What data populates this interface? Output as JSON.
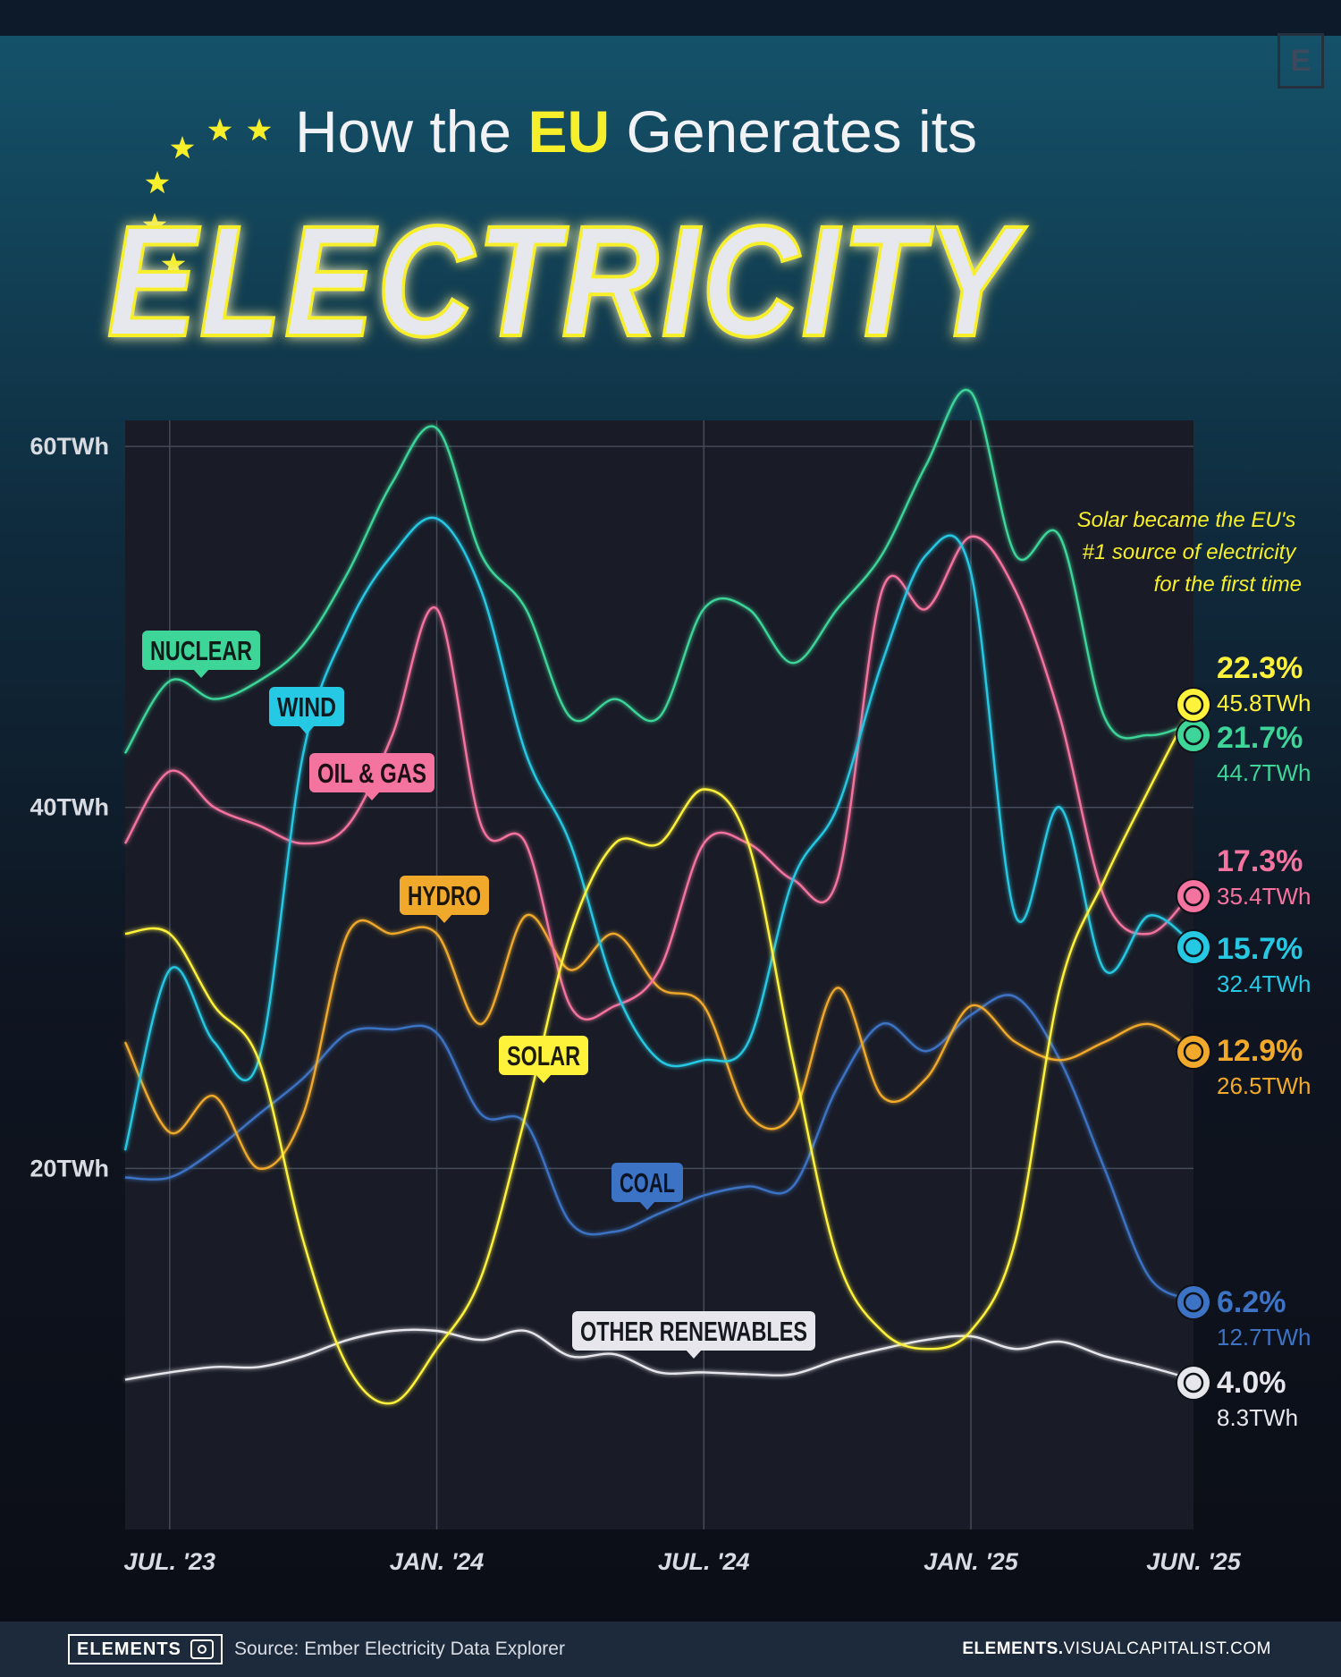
{
  "header": {
    "title_prefix": "How the ",
    "title_highlight": "EU",
    "title_suffix": " Generates its",
    "title_main": "ELECTRICITY"
  },
  "annotation": [
    "Solar became the EU's",
    "#1 source of electricity",
    "for the first time"
  ],
  "footer": {
    "brand": "ELEMENTS",
    "source": "Source: Ember Electricity Data Explorer",
    "site_bold": "ELEMENTS.",
    "site_rest": "VISUALCAPITALIST.COM"
  },
  "logo_letter": "E",
  "colors": {
    "nuclear": "#3dd598",
    "wind": "#25c9e3",
    "oil_gas": "#f5739f",
    "hydro": "#f0a92a",
    "solar": "#fff23a",
    "coal": "#3d73c4",
    "other": "#e6e6ec",
    "title_yellow": "#f6ef2a"
  },
  "chart_data": {
    "type": "line",
    "y_ticks": [
      {
        "value": 20,
        "label": "20TWh"
      },
      {
        "value": 40,
        "label": "40TWh"
      },
      {
        "value": 60,
        "label": "60TWh"
      }
    ],
    "ylim": [
      0,
      63
    ],
    "x_range": [
      "2023-06",
      "2025-06"
    ],
    "x_ticks": [
      {
        "month": "2023-07",
        "label": "JUL. '23"
      },
      {
        "month": "2024-01",
        "label": "JAN. '24"
      },
      {
        "month": "2024-07",
        "label": "JUL. '24"
      },
      {
        "month": "2025-01",
        "label": "JAN. '25"
      },
      {
        "month": "2025-06",
        "label": "JUN. '25"
      }
    ],
    "months": [
      "2023-06",
      "2023-07",
      "2023-08",
      "2023-09",
      "2023-10",
      "2023-11",
      "2023-12",
      "2024-01",
      "2024-02",
      "2024-03",
      "2024-04",
      "2024-05",
      "2024-06",
      "2024-07",
      "2024-08",
      "2024-09",
      "2024-10",
      "2024-11",
      "2024-12",
      "2025-01",
      "2025-02",
      "2025-03",
      "2025-04",
      "2025-05",
      "2025-06"
    ],
    "series": [
      {
        "key": "nuclear",
        "name": "NUCLEAR",
        "values": [
          43,
          47,
          46,
          47,
          49,
          53,
          58,
          61,
          54,
          51,
          45,
          46,
          45,
          51,
          51,
          48,
          51,
          54,
          59,
          63,
          54,
          55,
          45,
          44,
          44.7
        ],
        "pct": "21.7%",
        "twh": "44.7TWh",
        "icon": "nuclear-icon"
      },
      {
        "key": "wind",
        "name": "WIND",
        "values": [
          21,
          31,
          27,
          26,
          43,
          50,
          54,
          56,
          52,
          43,
          38,
          30,
          26,
          26,
          27,
          36,
          40,
          48,
          54,
          53,
          34,
          40,
          31,
          34,
          32.4
        ],
        "pct": "15.7%",
        "twh": "32.4TWh",
        "icon": "wind-icon"
      },
      {
        "key": "oil_gas",
        "name": "OIL & GAS",
        "values": [
          38,
          42,
          40,
          39,
          38,
          39,
          44,
          51,
          39,
          38,
          29,
          29,
          31,
          38,
          38,
          36,
          36,
          52,
          51,
          55,
          52,
          45,
          35,
          33,
          35.4
        ],
        "pct": "17.3%",
        "twh": "35.4TWh",
        "icon": "oil-gas-icon"
      },
      {
        "key": "hydro",
        "name": "HYDRO",
        "values": [
          27,
          22,
          24,
          20,
          23,
          33,
          33,
          33,
          28,
          34,
          31,
          33,
          30,
          29,
          23,
          23,
          30,
          24,
          25,
          29,
          27,
          26,
          27,
          28,
          26.5
        ],
        "pct": "12.9%",
        "twh": "26.5TWh",
        "icon": "hydro-icon"
      },
      {
        "key": "solar",
        "name": "SOLAR",
        "values": [
          33,
          33,
          29,
          26,
          16,
          9,
          7,
          10,
          14,
          23,
          33,
          38,
          38,
          41,
          38,
          26,
          15,
          11,
          10,
          11,
          16,
          30,
          36,
          41,
          45.8
        ],
        "pct": "22.3%",
        "twh": "45.8TWh",
        "icon": "solar-icon"
      },
      {
        "key": "coal",
        "name": "COAL",
        "values": [
          19.5,
          19.5,
          21,
          23,
          25,
          27.5,
          27.7,
          27.5,
          23,
          22.5,
          17,
          16.5,
          17.5,
          18.5,
          19,
          19,
          24.5,
          28,
          26.5,
          28.5,
          29.5,
          26,
          20,
          14,
          12.7
        ],
        "pct": "6.2%",
        "twh": "12.7TWh",
        "icon": "coal-icon"
      },
      {
        "key": "other",
        "name": "OTHER RENEWABLES",
        "values": [
          8.3,
          8.7,
          9,
          9,
          9.6,
          10.5,
          11,
          11,
          10.5,
          11,
          9.6,
          9.7,
          8.7,
          8.7,
          8.6,
          8.6,
          9.4,
          10,
          10.5,
          10.7,
          10,
          10.4,
          9.6,
          9,
          8.3
        ],
        "pct": "4.0%",
        "twh": "8.3TWh",
        "icon": "renewables-icon"
      }
    ]
  }
}
